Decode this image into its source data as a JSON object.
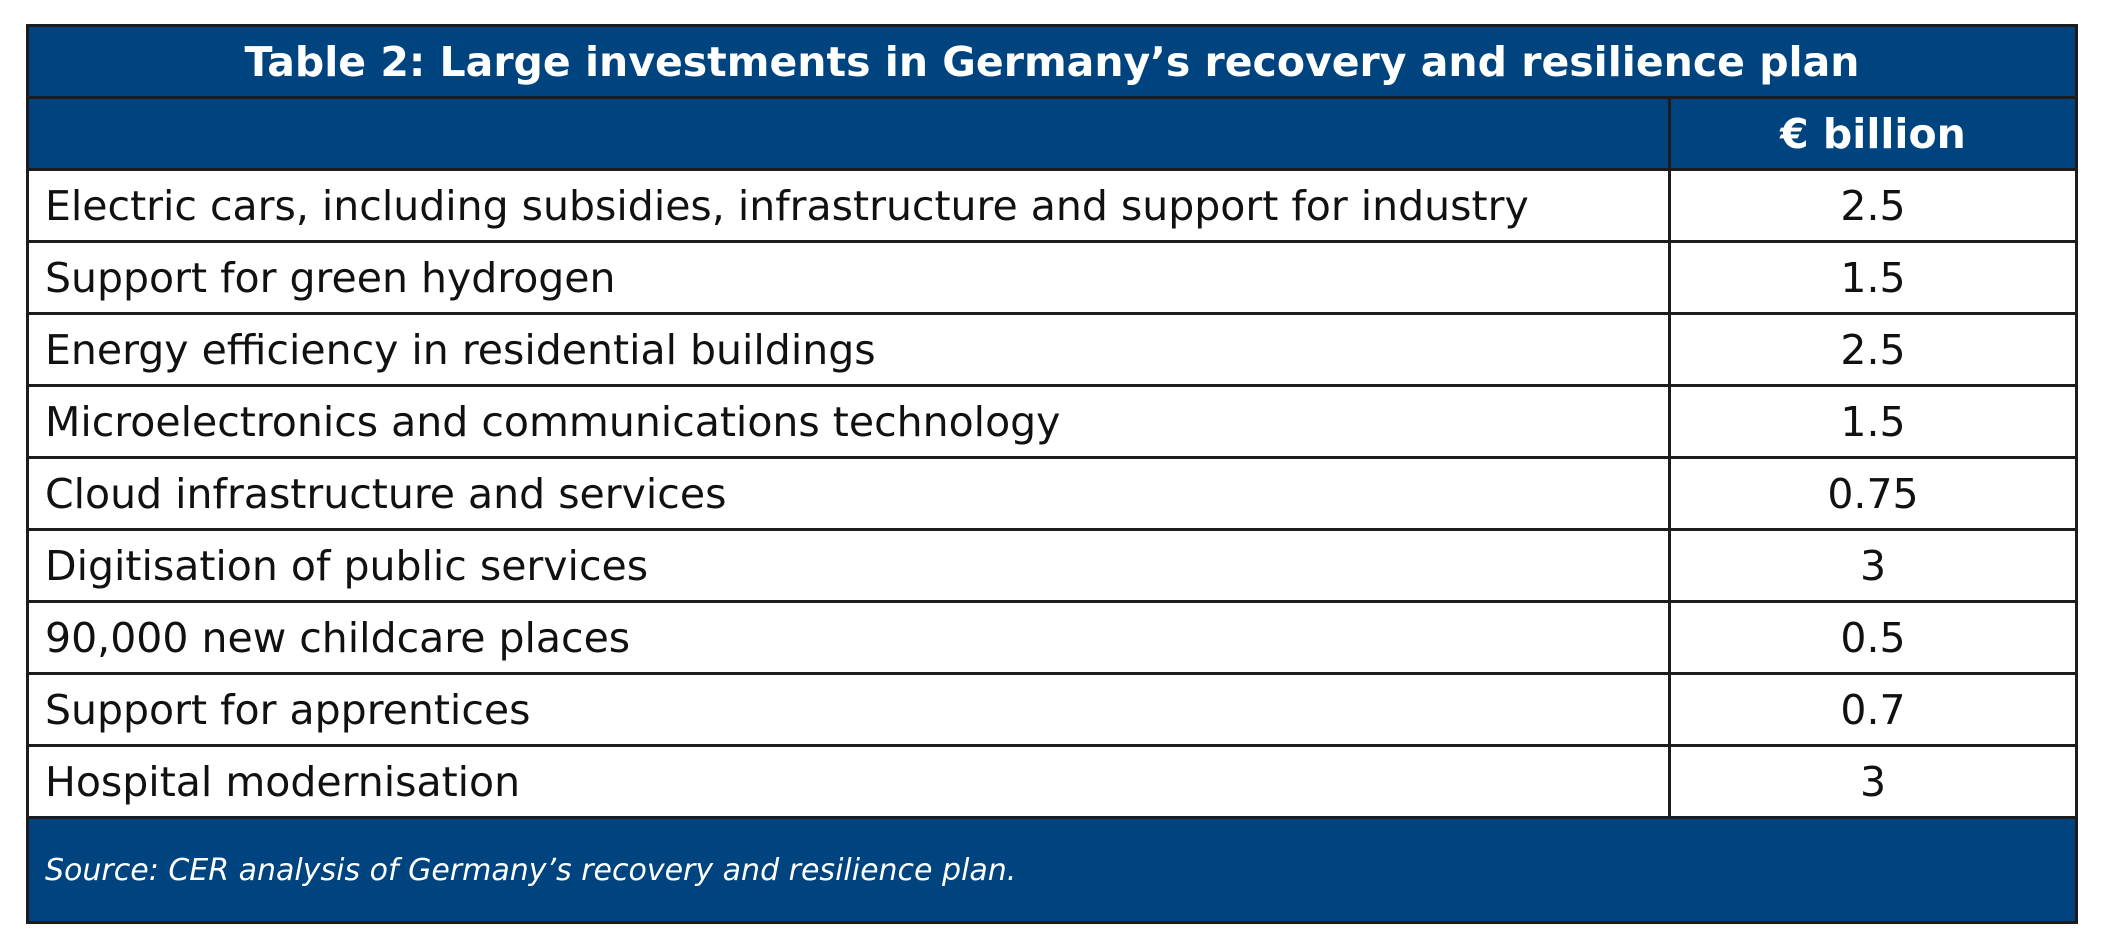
{
  "chart_data": {
    "type": "table",
    "title": "Table 2: Large investments in Germany’s recovery and resilience plan",
    "column_headers": [
      "",
      "€ billion"
    ],
    "rows": [
      {
        "label": "Electric cars, including subsidies, infrastructure and support for industry",
        "value": "2.5"
      },
      {
        "label": "Support for green hydrogen",
        "value": "1.5"
      },
      {
        "label": "Energy efficiency in residential buildings",
        "value": "2.5"
      },
      {
        "label": "Microelectronics and communications technology",
        "value": "1.5"
      },
      {
        "label": "Cloud infrastructure and services",
        "value": "0.75"
      },
      {
        "label": "Digitisation of public services",
        "value": "3"
      },
      {
        "label": "90,000 new childcare places",
        "value": "0.5"
      },
      {
        "label": "Support for apprentices",
        "value": "0.7"
      },
      {
        "label": "Hospital modernisation",
        "value": "3"
      }
    ],
    "source": "Source: CER analysis of Germany’s recovery and resilience plan."
  },
  "colors": {
    "header_background": "#00447f",
    "header_text": "#ffffff",
    "border": "#1c1c1c",
    "body_text": "#111111"
  }
}
